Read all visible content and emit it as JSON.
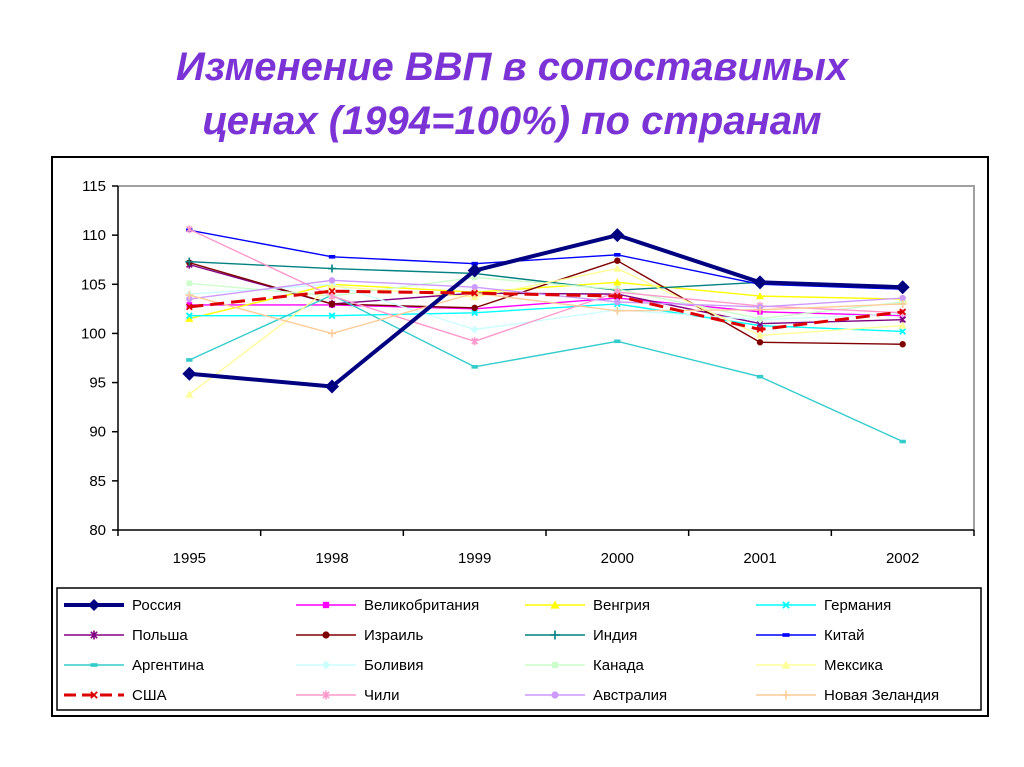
{
  "title_line1": "Изменение ВВП в сопоставимых",
  "title_line2": "ценах (1994=100%) по странам",
  "chart_data": {
    "type": "line",
    "title": "Изменение ВВП в сопоставимых ценах (1994=100%) по странам",
    "xlabel": "",
    "ylabel": "",
    "categories": [
      "1995",
      "1998",
      "1999",
      "2000",
      "2001",
      "2002"
    ],
    "ylim": [
      80,
      115
    ],
    "yticks": [
      80,
      85,
      90,
      95,
      100,
      105,
      110,
      115
    ],
    "grid": false,
    "legend_position": "bottom",
    "series": [
      {
        "name": "Россия",
        "color": "#000080",
        "marker": "diamond",
        "bold": true,
        "values": [
          95.9,
          94.6,
          106.4,
          110.0,
          105.2,
          104.7
        ]
      },
      {
        "name": "Великобритания",
        "color": "#ff00ff",
        "marker": "square",
        "values": [
          102.9,
          102.9,
          102.5,
          103.6,
          102.2,
          101.8
        ]
      },
      {
        "name": "Венгрия",
        "color": "#ffff00",
        "marker": "triangle",
        "values": [
          101.5,
          105.0,
          104.2,
          105.2,
          103.8,
          103.5
        ]
      },
      {
        "name": "Германия",
        "color": "#00ffff",
        "marker": "x",
        "values": [
          101.8,
          101.8,
          102.1,
          103.0,
          100.8,
          100.2
        ]
      },
      {
        "name": "Польша",
        "color": "#800080",
        "marker": "star",
        "values": [
          107.0,
          103.0,
          104.1,
          104.0,
          101.0,
          101.4
        ]
      },
      {
        "name": "Израиль",
        "color": "#800000",
        "marker": "circle",
        "values": [
          107.2,
          103.0,
          102.6,
          107.4,
          99.1,
          98.9
        ]
      },
      {
        "name": "Индия",
        "color": "#008080",
        "marker": "plus",
        "values": [
          107.3,
          106.6,
          106.1,
          104.4,
          105.2,
          104.6
        ]
      },
      {
        "name": "Китай",
        "color": "#0000ff",
        "marker": "dash",
        "values": [
          110.5,
          107.8,
          107.1,
          108.0,
          105.0,
          104.5
        ]
      },
      {
        "name": "Аргентина",
        "color": "#33cccc",
        "marker": "dash",
        "values": [
          97.3,
          103.9,
          96.6,
          99.2,
          95.6,
          89.0
        ]
      },
      {
        "name": "Боливия",
        "color": "#ccffff",
        "marker": "diamond",
        "values": [
          104.0,
          105.0,
          100.4,
          102.4,
          101.4,
          102.0
        ]
      },
      {
        "name": "Канада",
        "color": "#ccffcc",
        "marker": "square",
        "values": [
          105.1,
          103.8,
          105.7,
          104.5,
          101.5,
          103.2
        ]
      },
      {
        "name": "Мексика",
        "color": "#ffff99",
        "marker": "triangle",
        "values": [
          93.8,
          104.8,
          103.7,
          106.6,
          99.8,
          100.8
        ]
      },
      {
        "name": "США",
        "color": "#dd0000",
        "marker": "x",
        "dashed": true,
        "bold": true,
        "values": [
          102.7,
          104.3,
          104.1,
          103.8,
          100.4,
          102.2
        ]
      },
      {
        "name": "Чили",
        "color": "#ff99cc",
        "marker": "star",
        "values": [
          110.6,
          103.8,
          99.2,
          104.2,
          102.8,
          102.1
        ]
      },
      {
        "name": "Австралия",
        "color": "#cc99ff",
        "marker": "circle",
        "values": [
          103.5,
          105.4,
          104.7,
          103.2,
          102.7,
          103.6
        ]
      },
      {
        "name": "Новая Зеландия",
        "color": "#ffcc99",
        "marker": "plus",
        "values": [
          103.9,
          100.0,
          104.1,
          102.3,
          102.4,
          103.0
        ]
      }
    ]
  }
}
